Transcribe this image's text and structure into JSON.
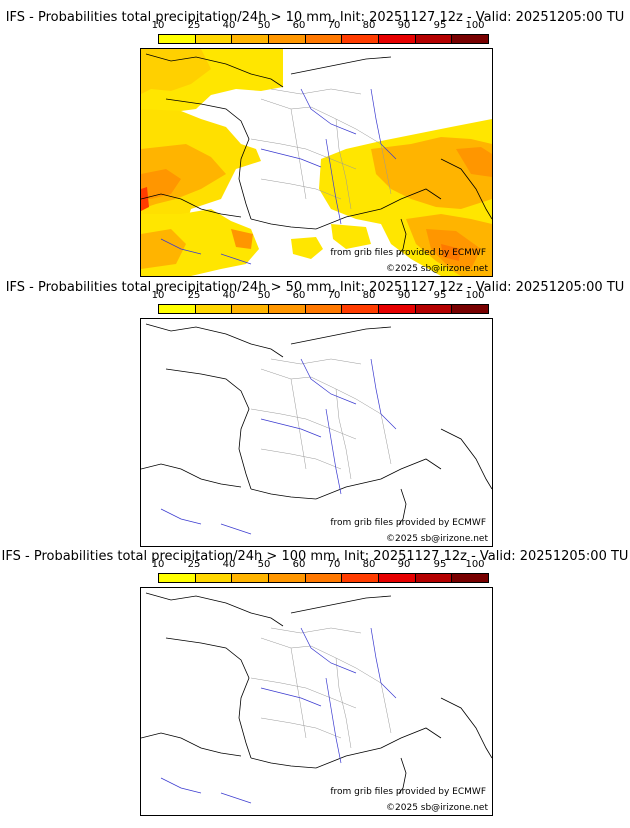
{
  "legend_ticks": [
    "10",
    "25",
    "40",
    "50",
    "60",
    "70",
    "80",
    "90",
    "95",
    "100"
  ],
  "legend_colors": [
    "#ffff00",
    "#ffd700",
    "#ffb400",
    "#ff9600",
    "#ff7800",
    "#ff3c00",
    "#e60000",
    "#b40000",
    "#780000"
  ],
  "panels": [
    {
      "title": "IFS - Probabilities total precipitation/24h > 10 mm, Init: 20251127 12z - Valid: 20251205:00 TU",
      "source": "from grib files provided by ECMWF",
      "copyright": "©2025 sb@irizone.net",
      "has_precip": true
    },
    {
      "title": "IFS - Probabilities total precipitation/24h > 50 mm, Init: 20251127 12z - Valid: 20251205:00 TU",
      "source": "from grib files provided by ECMWF",
      "copyright": "©2025 sb@irizone.net",
      "has_precip": false
    },
    {
      "title": "IFS - Probabilities total precipitation/24h > 100 mm, Init: 20251127 12z - Valid: 20251205:00 TU",
      "source": "from grib files provided by ECMWF",
      "copyright": "©2025 sb@irizone.net",
      "has_precip": false
    }
  ]
}
